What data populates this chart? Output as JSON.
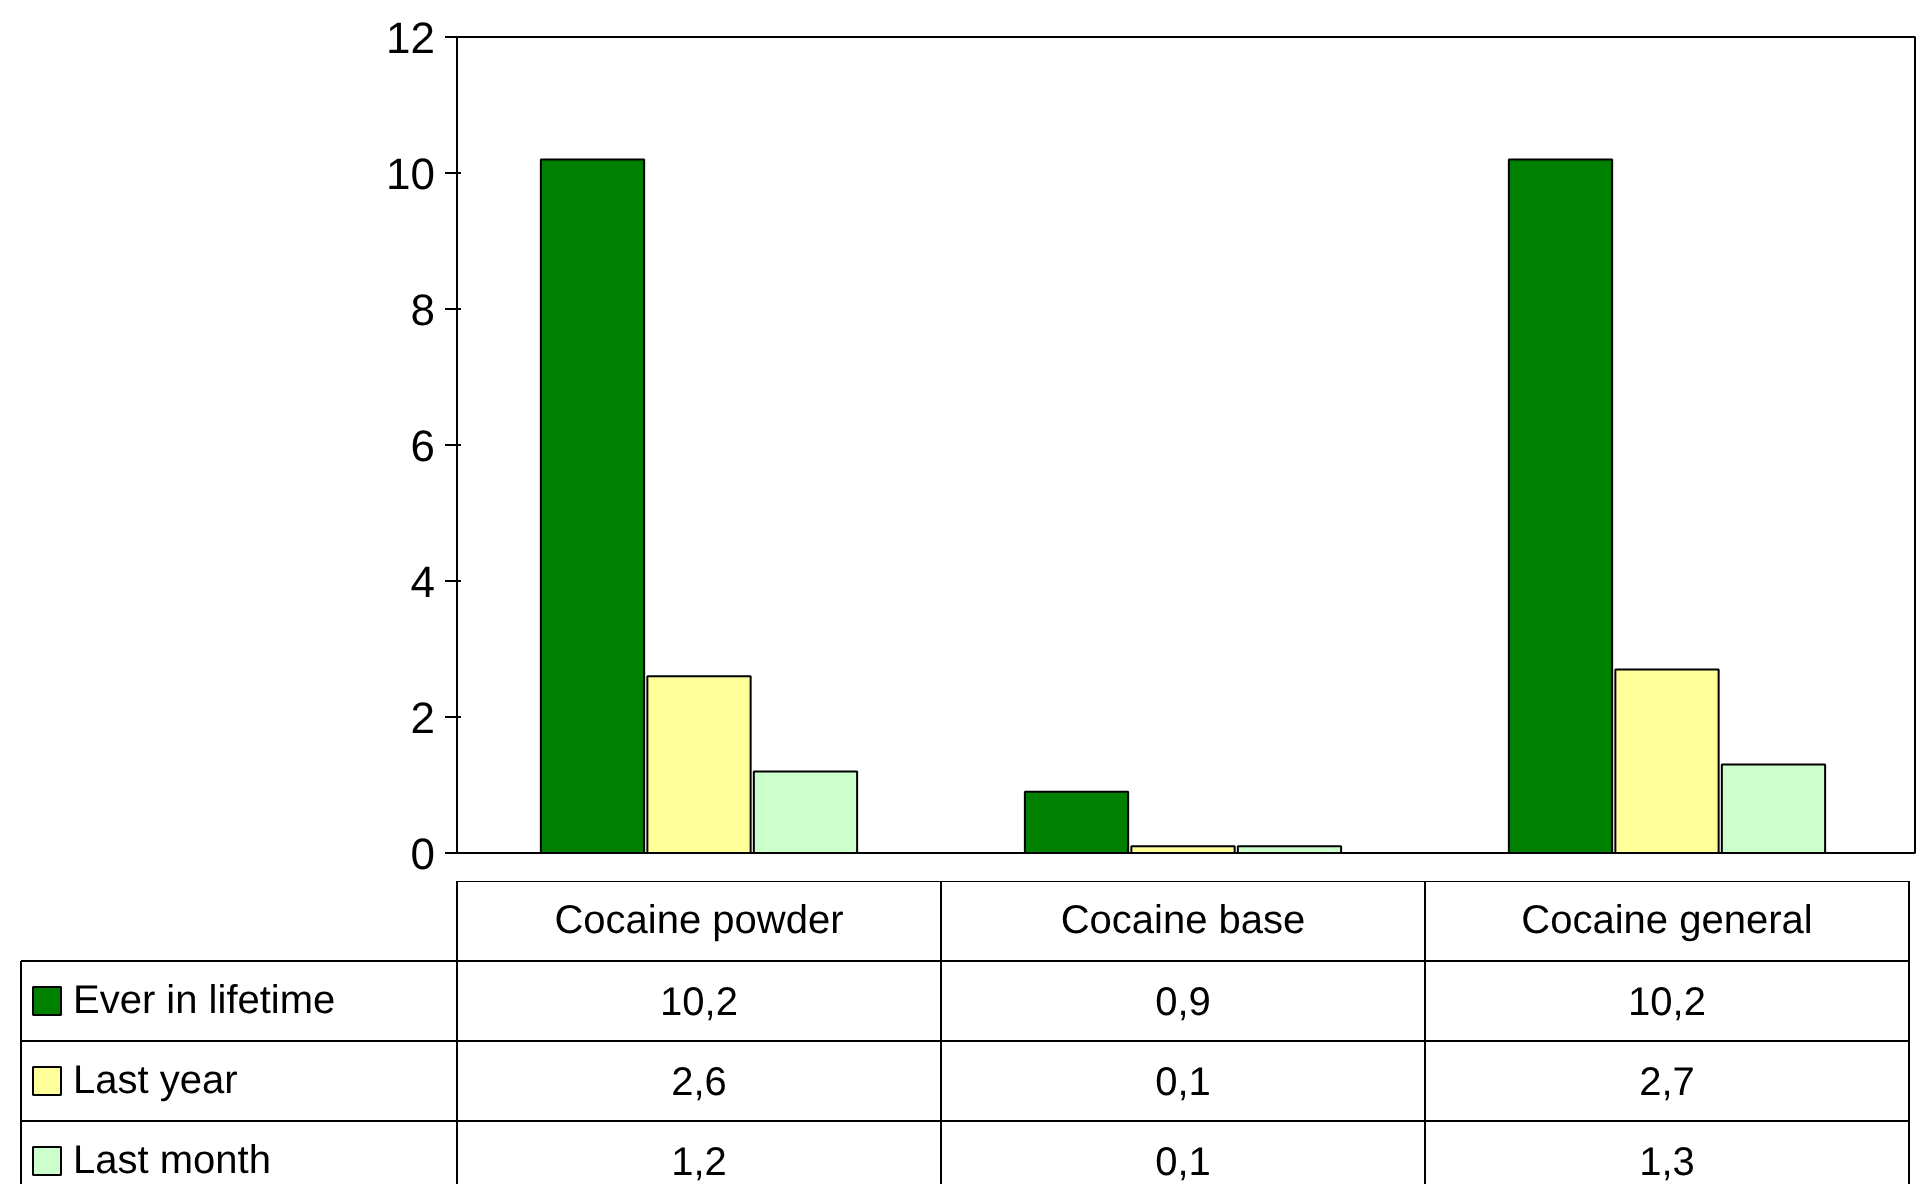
{
  "chart_data": {
    "type": "bar",
    "categories": [
      "Cocaine powder",
      "Cocaine base",
      "Cocaine general"
    ],
    "series": [
      {
        "name": "Ever in lifetime",
        "color": "#008000",
        "values": [
          10.2,
          0.9,
          10.2
        ],
        "value_labels": [
          "10,2",
          "0,9",
          "10,2"
        ]
      },
      {
        "name": "Last year",
        "color": "#ffff99",
        "values": [
          2.6,
          0.1,
          2.7
        ],
        "value_labels": [
          "2,6",
          "0,1",
          "2,7"
        ]
      },
      {
        "name": "Last month",
        "color": "#ccffcc",
        "values": [
          1.2,
          0.1,
          1.3
        ],
        "value_labels": [
          "1,2",
          "0,1",
          "1,3"
        ]
      }
    ],
    "ylim": [
      0,
      12
    ],
    "yticks": [
      0,
      2,
      4,
      6,
      8,
      10,
      12
    ],
    "grid": false,
    "legend": "bottom left"
  }
}
